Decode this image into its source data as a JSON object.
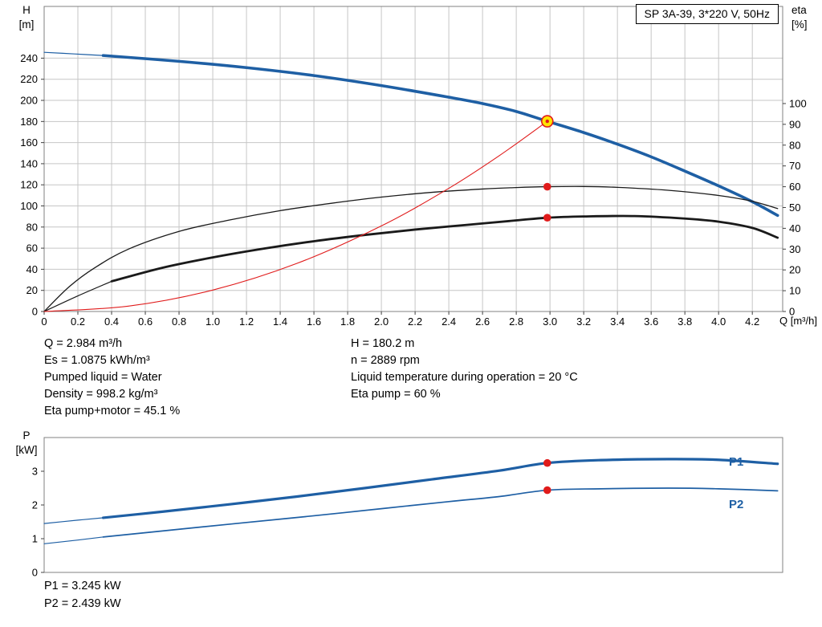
{
  "colors": {
    "curve_blue": "#1e5fa4",
    "curve_black": "#1a1a1a",
    "red": "#e01b1b",
    "duty_fill": "#ffe400",
    "grid": "#c6c6c6",
    "frame": "#808080",
    "tick": "#404040"
  },
  "info_left": [
    "Q = 2.984 m³/h",
    "Es = 1.0875 kWh/m³",
    "Pumped liquid = Water",
    "Density = 998.2 kg/m³",
    "Eta pump+motor = 45.1 %"
  ],
  "info_right": [
    "H = 180.2 m",
    "n = 2889 rpm",
    "Liquid temperature during operation = 20 °C",
    "Eta pump = 60 %"
  ],
  "power_info": [
    "P1 = 3.245 kW",
    "P2 = 2.439 kW"
  ],
  "chart_data": [
    {
      "id": "top",
      "type": "line",
      "title": "SP 3A-39, 3*220 V, 50Hz",
      "x": {
        "label": "Q [m³/h]",
        "min": 0,
        "max": 4.38,
        "grid": true,
        "ticks": [
          "0",
          "0.2",
          "0.4",
          "0.6",
          "0.8",
          "1.0",
          "1.2",
          "1.4",
          "1.6",
          "1.8",
          "2.0",
          "2.2",
          "2.4",
          "2.6",
          "2.8",
          "3.0",
          "3.2",
          "3.4",
          "3.6",
          "3.8",
          "4.0",
          "4.2"
        ]
      },
      "y_left": {
        "label": "H",
        "unit": "[m]",
        "min": 0,
        "max": 289,
        "grid": true,
        "ticks": [
          0,
          20,
          40,
          60,
          80,
          100,
          120,
          140,
          160,
          180,
          200,
          220,
          240
        ]
      },
      "y_right": {
        "label": "eta",
        "unit": "[%]",
        "min": 0,
        "max": 146.7,
        "grid": false,
        "ticks": [
          0,
          10,
          20,
          30,
          40,
          50,
          60,
          70,
          80,
          90,
          100
        ]
      },
      "series": [
        {
          "name": "pump-curve",
          "axis": "left",
          "color": "#1e5fa4",
          "segments": [
            {
              "width": 1.2,
              "points": [
                [
                  0,
                  245.5
                ],
                [
                  0.18,
                  244
                ],
                [
                  0.35,
                  242.5
                ]
              ]
            },
            {
              "width": 3.6,
              "points": [
                [
                  0.35,
                  242.5
                ],
                [
                  0.8,
                  237
                ],
                [
                  1.2,
                  231
                ],
                [
                  1.6,
                  223.5
                ],
                [
                  2.0,
                  214
                ],
                [
                  2.4,
                  203
                ],
                [
                  2.6,
                  197
                ],
                [
                  2.8,
                  189.5
                ],
                [
                  2.984,
                  180.2
                ],
                [
                  3.2,
                  169.5
                ],
                [
                  3.4,
                  158.5
                ],
                [
                  3.6,
                  146.5
                ],
                [
                  3.8,
                  133
                ],
                [
                  4.0,
                  119
                ],
                [
                  4.2,
                  104
                ],
                [
                  4.35,
                  91
                ]
              ]
            }
          ]
        },
        {
          "name": "eta-pump",
          "axis": "right",
          "color": "#1a1a1a",
          "segments": [
            {
              "width": 1.3,
              "points": [
                [
                  0,
                  0
                ],
                [
                  0.15,
                  12
                ],
                [
                  0.3,
                  21
                ],
                [
                  0.5,
                  30
                ],
                [
                  0.8,
                  38.5
                ],
                [
                  1.1,
                  44
                ],
                [
                  1.4,
                  48.5
                ],
                [
                  1.7,
                  52
                ],
                [
                  2.0,
                  55
                ],
                [
                  2.3,
                  57.3
                ],
                [
                  2.6,
                  58.9
                ],
                [
                  2.8,
                  59.6
                ],
                [
                  2.984,
                  60
                ],
                [
                  3.2,
                  60.1
                ],
                [
                  3.4,
                  59.7
                ],
                [
                  3.7,
                  58.3
                ],
                [
                  4.0,
                  55.8
                ],
                [
                  4.2,
                  53
                ],
                [
                  4.35,
                  49.5
                ]
              ]
            }
          ]
        },
        {
          "name": "eta-pump-motor",
          "axis": "right",
          "color": "#1a1a1a",
          "segments": [
            {
              "width": 1.2,
              "points": [
                [
                  0,
                  0
                ],
                [
                  0.2,
                  7.5
                ],
                [
                  0.4,
                  14.5
                ]
              ]
            },
            {
              "width": 2.8,
              "points": [
                [
                  0.4,
                  14.5
                ],
                [
                  0.7,
                  21
                ],
                [
                  1.0,
                  26
                ],
                [
                  1.3,
                  30.2
                ],
                [
                  1.6,
                  33.8
                ],
                [
                  1.9,
                  36.8
                ],
                [
                  2.2,
                  39.4
                ],
                [
                  2.5,
                  41.6
                ],
                [
                  2.8,
                  43.8
                ],
                [
                  2.984,
                  45.1
                ],
                [
                  3.2,
                  45.7
                ],
                [
                  3.5,
                  45.9
                ],
                [
                  3.8,
                  44.7
                ],
                [
                  4.0,
                  43.2
                ],
                [
                  4.2,
                  40.2
                ],
                [
                  4.35,
                  35.5
                ]
              ]
            }
          ]
        },
        {
          "name": "duty-line",
          "axis": "left",
          "color": "#e01b1b",
          "segments": [
            {
              "width": 1.1,
              "points": [
                [
                  0,
                  0
                ],
                [
                  0.5,
                  5.1
                ],
                [
                  1.0,
                  20.3
                ],
                [
                  1.5,
                  45.6
                ],
                [
                  2.0,
                  81.1
                ],
                [
                  2.4,
                  116.7
                ],
                [
                  2.7,
                  147.7
                ],
                [
                  2.984,
                  180.2
                ]
              ]
            }
          ]
        }
      ],
      "markers": [
        {
          "kind": "dot",
          "axis": "right",
          "q": 2.984,
          "v": 60
        },
        {
          "kind": "dot",
          "axis": "right",
          "q": 2.984,
          "v": 45.1
        },
        {
          "kind": "duty",
          "axis": "left",
          "q": 2.984,
          "v": 180.2
        }
      ]
    },
    {
      "id": "bottom",
      "type": "line",
      "x": {
        "label": "",
        "min": 0,
        "max": 4.38,
        "grid": false,
        "ticks": []
      },
      "y_left": {
        "label": "P",
        "unit": "[kW]",
        "min": 0,
        "max": 4,
        "grid": false,
        "ticks": [
          0,
          1,
          2,
          3
        ]
      },
      "series": [
        {
          "name": "P1",
          "axis": "left",
          "color": "#1e5fa4",
          "segments": [
            {
              "width": 1.2,
              "points": [
                [
                  0,
                  1.45
                ],
                [
                  0.2,
                  1.55
                ],
                [
                  0.35,
                  1.62
                ]
              ]
            },
            {
              "width": 3.2,
              "points": [
                [
                  0.35,
                  1.62
                ],
                [
                  0.7,
                  1.8
                ],
                [
                  1.1,
                  2.02
                ],
                [
                  1.5,
                  2.25
                ],
                [
                  1.9,
                  2.5
                ],
                [
                  2.3,
                  2.76
                ],
                [
                  2.7,
                  3.02
                ],
                [
                  2.984,
                  3.245
                ],
                [
                  3.3,
                  3.33
                ],
                [
                  3.7,
                  3.36
                ],
                [
                  4.0,
                  3.34
                ],
                [
                  4.35,
                  3.22
                ]
              ]
            }
          ]
        },
        {
          "name": "P2",
          "axis": "left",
          "color": "#1e5fa4",
          "segments": [
            {
              "width": 1.1,
              "points": [
                [
                  0,
                  0.85
                ],
                [
                  0.2,
                  0.96
                ],
                [
                  0.35,
                  1.05
                ]
              ]
            },
            {
              "width": 1.7,
              "points": [
                [
                  0.35,
                  1.05
                ],
                [
                  0.8,
                  1.28
                ],
                [
                  1.2,
                  1.48
                ],
                [
                  1.6,
                  1.68
                ],
                [
                  2.0,
                  1.89
                ],
                [
                  2.4,
                  2.1
                ],
                [
                  2.7,
                  2.25
                ],
                [
                  2.984,
                  2.439
                ],
                [
                  3.3,
                  2.48
                ],
                [
                  3.7,
                  2.5
                ],
                [
                  4.0,
                  2.48
                ],
                [
                  4.35,
                  2.42
                ]
              ]
            }
          ]
        }
      ],
      "markers": [
        {
          "kind": "dot",
          "axis": "left",
          "q": 2.984,
          "v": 3.245
        },
        {
          "kind": "dot",
          "axis": "left",
          "q": 2.984,
          "v": 2.439
        }
      ]
    }
  ]
}
